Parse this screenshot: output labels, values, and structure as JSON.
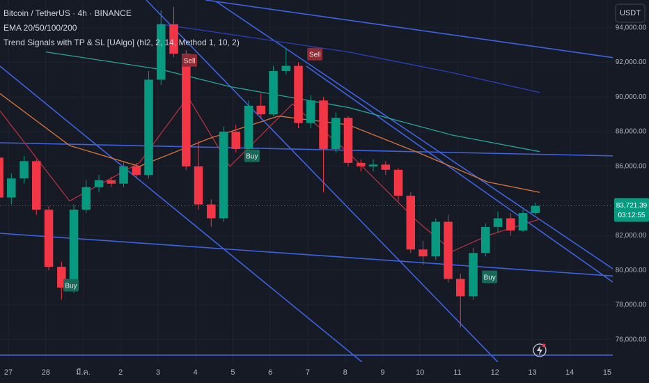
{
  "chart_data": {
    "type": "candlestick",
    "legend_lines": [
      "Bitcoin / TetherUS · 4h · BINANCE",
      "EMA 20/50/100/200",
      "Trend  Signals with TP & SL [UAlgo] (hl2, 2, 14, Method 1, 10, 2)"
    ],
    "currency": "USDT",
    "x": [
      -0.25,
      0.08,
      0.42,
      0.75,
      1.08,
      1.42,
      1.75,
      2.08,
      2.42,
      2.75,
      3.08,
      3.42,
      3.75,
      4.08,
      4.42,
      4.75,
      5.08,
      5.42,
      5.75,
      6.08,
      6.42,
      6.75,
      7.08,
      7.42,
      7.75,
      8.08,
      8.42,
      8.75,
      9.08,
      9.42,
      9.75,
      10.08,
      10.42,
      10.75,
      11.08,
      11.42,
      11.75,
      12.08,
      12.42,
      12.75,
      13.08,
      13.42,
      13.75,
      14.08
    ],
    "open": [
      86500,
      84200,
      85300,
      86300,
      83500,
      80200,
      79000,
      83500,
      84800,
      85200,
      85000,
      86000,
      85500,
      91000,
      94200,
      92500,
      86000,
      83800,
      83000,
      88000,
      87000,
      89500,
      89000,
      91500,
      91800,
      88500,
      89800,
      87000,
      88800,
      86200,
      86000,
      86100,
      85800,
      84300,
      81200,
      80800,
      82800,
      79500,
      78500,
      81000,
      82500,
      83000,
      82300,
      83300
    ],
    "high": [
      86800,
      85600,
      86600,
      86400,
      83700,
      80500,
      83800,
      85200,
      85500,
      85400,
      86300,
      86200,
      91500,
      95000,
      95200,
      92700,
      87500,
      84100,
      88300,
      88400,
      89800,
      90200,
      91800,
      92800,
      92000,
      90100,
      90000,
      89100,
      88900,
      86400,
      86400,
      86300,
      85900,
      84500,
      81700,
      83000,
      83200,
      79800,
      81300,
      82700,
      83400,
      83300,
      83500,
      83900
    ],
    "low": [
      83900,
      83800,
      85000,
      83200,
      80000,
      78300,
      78700,
      83300,
      84500,
      84800,
      84800,
      85300,
      85300,
      90700,
      92300,
      85800,
      83500,
      82500,
      82800,
      86800,
      86900,
      88800,
      88900,
      91300,
      88200,
      88200,
      84500,
      86800,
      86000,
      85700,
      85700,
      85500,
      84000,
      81000,
      80300,
      80600,
      79300,
      76700,
      78300,
      80800,
      82200,
      82000,
      82200,
      83200
    ],
    "close": [
      84200,
      85300,
      86300,
      83500,
      80200,
      79000,
      83500,
      84800,
      85200,
      85000,
      86000,
      85500,
      91000,
      94200,
      92500,
      86000,
      83800,
      83000,
      88000,
      87000,
      89500,
      89000,
      91500,
      91800,
      88500,
      89800,
      87000,
      88800,
      86200,
      86000,
      86100,
      85800,
      84300,
      81200,
      80800,
      82800,
      79500,
      78500,
      81000,
      82500,
      83000,
      82300,
      83300,
      83721.39
    ],
    "up_color": "#089981",
    "down_color": "#f23645",
    "series": [
      {
        "color": "#b2323f",
        "x": [
          -0.223,
          1.638,
          3.498,
          4.801,
          5.917,
          7.591,
          9.08,
          10.941,
          11.871,
          12.801,
          14.196
        ],
        "values": [
          89200,
          84000,
          86200,
          90000,
          86000,
          89600,
          86800,
          82800,
          81100,
          82000,
          82950
        ]
      },
      {
        "color": "#d9753a",
        "x": [
          -0.223,
          1.638,
          3.498,
          5.359,
          7.219,
          9.08,
          10.941,
          12.801,
          14.196
        ],
        "values": [
          90200,
          87200,
          86000,
          87600,
          88900,
          88400,
          86800,
          85100,
          84500
        ]
      },
      {
        "color": "#26a69a",
        "x": [
          1.005,
          4.056,
          5.917,
          9.08,
          11.871,
          14.196
        ],
        "values": [
          92600,
          91600,
          90600,
          89400,
          87800,
          86850
        ]
      },
      {
        "color": "#2a3fb8",
        "x": [
          4.056,
          5.359,
          9.08,
          11.871,
          14.196
        ],
        "values": [
          94200,
          93800,
          92600,
          91400,
          90260
        ]
      }
    ],
    "trend_lines": [
      {
        "from": [
          -0.223,
          87361
        ],
        "to": [
          17.118,
          86557
        ]
      },
      {
        "from": [
          5.266,
          95600
        ],
        "to": [
          17.118,
          91983
        ]
      },
      {
        "from": [
          -0.223,
          91782
        ],
        "to": [
          9.452,
          74701
        ]
      },
      {
        "from": [
          3.684,
          95600
        ],
        "to": [
          13.08,
          74701
        ]
      },
      {
        "from": [
          5.545,
          95520
        ],
        "to": [
          17.118,
          78680
        ]
      },
      {
        "from": [
          7.963,
          91782
        ],
        "to": [
          16.15,
          79323
        ]
      },
      {
        "from": [
          -0.223,
          82136
        ],
        "to": [
          17.118,
          79524
        ]
      },
      {
        "from": [
          -0.223,
          75103
        ],
        "to": [
          17.118,
          75103
        ]
      }
    ],
    "trend_color": "#3d63e0",
    "signals": [
      {
        "label": "Buy",
        "x": 1.674,
        "price": 79135
      },
      {
        "label": "Sell",
        "x": 4.84,
        "price": 92112
      },
      {
        "label": "Buy",
        "x": 6.51,
        "price": 86607
      },
      {
        "label": "Sell",
        "x": 8.19,
        "price": 92473
      },
      {
        "label": "Buy",
        "x": 12.86,
        "price": 79617
      }
    ],
    "last_price": {
      "value": 83721.39,
      "label": "83,721.39"
    },
    "countdown": "03:12:55",
    "xlim": [
      -0.223,
      16.15
    ],
    "xticks": [
      {
        "value": 0,
        "label": "27"
      },
      {
        "value": 1,
        "label": "28"
      },
      {
        "value": 2,
        "label": "มี.ค."
      },
      {
        "value": 3,
        "label": "2"
      },
      {
        "value": 4,
        "label": "3"
      },
      {
        "value": 5,
        "label": "4"
      },
      {
        "value": 6,
        "label": "5"
      },
      {
        "value": 7,
        "label": "6"
      },
      {
        "value": 8,
        "label": "7"
      },
      {
        "value": 9,
        "label": "8"
      },
      {
        "value": 10,
        "label": "9"
      },
      {
        "value": 11,
        "label": "10"
      },
      {
        "value": 12,
        "label": "11"
      },
      {
        "value": 13,
        "label": "12"
      },
      {
        "value": 14,
        "label": "13"
      },
      {
        "value": 15,
        "label": "14"
      },
      {
        "value": 16,
        "label": "15"
      }
    ],
    "ylim": [
      74700,
      95600
    ],
    "yticks": [
      {
        "value": 76000,
        "label": "76,000.00"
      },
      {
        "value": 78000,
        "label": "78,000.00"
      },
      {
        "value": 80000,
        "label": "80,000.00"
      },
      {
        "value": 82000,
        "label": "82,000.00"
      },
      {
        "value": 84000,
        "label": "84,000.00"
      },
      {
        "value": 86000,
        "label": "86,000.00"
      },
      {
        "value": 88000,
        "label": "88,000.00"
      },
      {
        "value": 90000,
        "label": "90,000.00"
      },
      {
        "value": 92000,
        "label": "92,000.00"
      },
      {
        "value": 94000,
        "label": "94,000.00"
      }
    ],
    "grid": true
  }
}
